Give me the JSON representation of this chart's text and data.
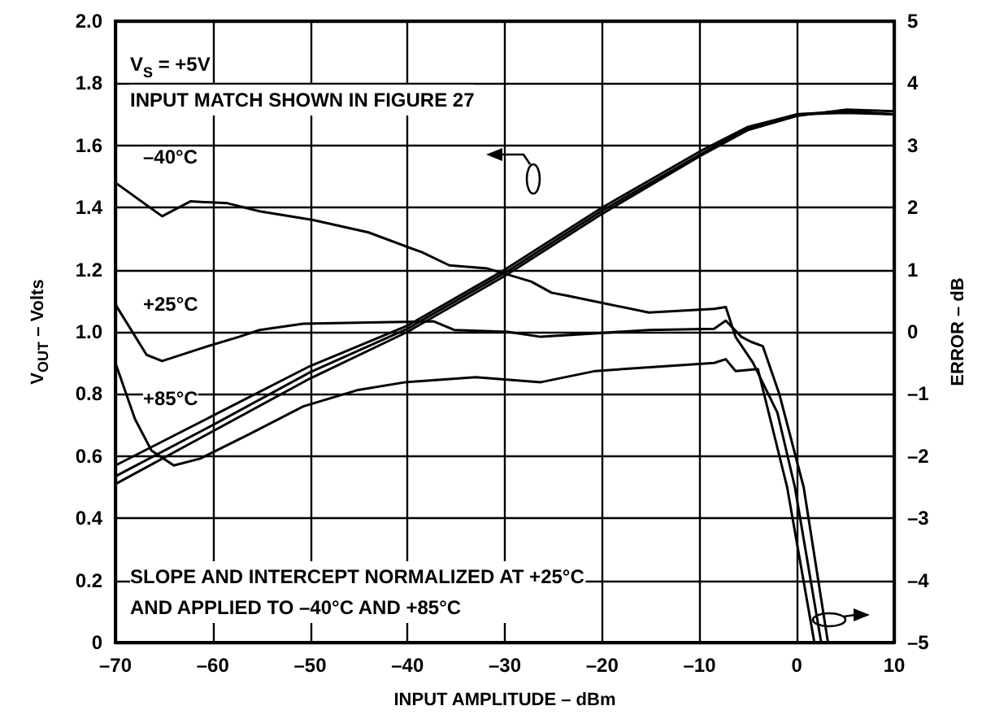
{
  "chart_data": {
    "type": "line",
    "xlabel": "INPUT AMPLITUDE – dBm",
    "ylabel": "V$_{OUT}$ – Volts",
    "y2label": "ERROR – dB",
    "xlim": [
      -70,
      10
    ],
    "xticks": [
      {
        "value": -70,
        "label": "–70"
      },
      {
        "value": -60,
        "label": "–60"
      },
      {
        "value": -50,
        "label": "–50"
      },
      {
        "value": -40,
        "label": "–40"
      },
      {
        "value": -30,
        "label": "–30"
      },
      {
        "value": -20,
        "label": "–20"
      },
      {
        "value": -10,
        "label": "–10"
      },
      0,
      10
    ],
    "ylim": [
      0,
      2
    ],
    "yticks": [
      0,
      0.2,
      0.4,
      0.6,
      0.8,
      {
        "value": 1,
        "label": "1.0"
      },
      1.2,
      1.4,
      1.6,
      1.8,
      {
        "value": 2,
        "label": "2.0"
      }
    ],
    "y2lim": [
      -5,
      5
    ],
    "y2ticks": [
      {
        "value": -5,
        "label": "–5"
      },
      {
        "value": -4,
        "label": "–4"
      },
      {
        "value": -3,
        "label": "–3"
      },
      {
        "value": -2,
        "label": "–2"
      },
      {
        "value": -1,
        "label": "–1"
      },
      0,
      1,
      2,
      3,
      4,
      5
    ],
    "grid": true,
    "marker": "none",
    "line_style": "solid",
    "annotations": [
      "V$_{S}$ = +5V",
      "INPUT MATCH SHOWN IN FIGURE 27",
      "SLOPE AND INTERCEPT NORMALIZED AT +25°C\nAND APPLIED TO –40°C AND +85°C"
    ],
    "series": [
      {
        "color": "#000000",
        "x": [
          -70,
          -60,
          -50,
          -40,
          -30,
          -20,
          -10,
          -5,
          0,
          5,
          10
        ],
        "values": [
          0.57,
          0.73,
          0.89,
          1.02,
          1.2,
          1.4,
          1.58,
          1.66,
          1.7,
          1.705,
          1.7
        ]
      },
      {
        "color": "#000000",
        "x": [
          -70,
          -60,
          -50,
          -40,
          -30,
          -20,
          -10,
          -5,
          0,
          5,
          10
        ],
        "values": [
          0.535,
          0.7,
          0.87,
          1.01,
          1.19,
          1.39,
          1.57,
          1.655,
          1.7,
          1.71,
          1.7
        ]
      },
      {
        "color": "#000000",
        "x": [
          -70,
          -60,
          -50,
          -40,
          -30,
          -20,
          -10,
          -5,
          0,
          5,
          10
        ],
        "values": [
          0.51,
          0.68,
          0.85,
          1,
          1.18,
          1.38,
          1.565,
          1.65,
          1.695,
          1.715,
          1.71
        ]
      },
      {
        "name": "–40°C",
        "color": "#000000",
        "axis": "y2",
        "x": [
          -70,
          -65.2,
          -62.3,
          -58.5,
          -55.2,
          -49.7,
          -44,
          -38.5,
          -35.7,
          -31.8,
          -27.3,
          -25.2,
          -23.5,
          -15.2,
          -8.5,
          -7.3,
          -6.3,
          -4.5,
          -2,
          -0.2,
          2.5
        ],
        "values": [
          2.4,
          1.86,
          2.1,
          2.07,
          1.94,
          1.8,
          1.6,
          1.28,
          1.07,
          1.02,
          0.81,
          0.63,
          0.58,
          0.31,
          0.37,
          0.4,
          -0.08,
          -0.5,
          -1.3,
          -2.5,
          -5
        ]
      },
      {
        "name": "+25°C",
        "color": "#000000",
        "axis": "y2",
        "x": [
          -70,
          -66.8,
          -65.2,
          -60.7,
          -57.3,
          -55.2,
          -50.7,
          -44,
          -37.3,
          -35.2,
          -29.7,
          -26.3,
          -15.2,
          -8.5,
          -7.3,
          -5.7,
          -4.7,
          -3.5,
          -1.8,
          0.7,
          3.2
        ],
        "values": [
          0.44,
          -0.37,
          -0.47,
          -0.24,
          -0.08,
          0.03,
          0.13,
          0.15,
          0.17,
          0.03,
          0,
          -0.08,
          0.03,
          0.05,
          0.18,
          -0.08,
          -0.16,
          -0.23,
          -1,
          -2.5,
          -5
        ]
      },
      {
        "name": "+85°C",
        "color": "#000000",
        "axis": "y2",
        "x": [
          -70,
          -68,
          -66.3,
          -64,
          -61.3,
          -56.3,
          -50.7,
          -45.2,
          -40.2,
          -33,
          -26.3,
          -20.7,
          -8.5,
          -7.3,
          -6.3,
          -4,
          -1,
          1.8
        ],
        "values": [
          -0.5,
          -1.4,
          -1.91,
          -2.15,
          -2.04,
          -1.65,
          -1.2,
          -0.94,
          -0.81,
          -0.73,
          -0.81,
          -0.63,
          -0.5,
          -0.44,
          -0.63,
          -0.6,
          -2.5,
          -5
        ]
      }
    ]
  }
}
